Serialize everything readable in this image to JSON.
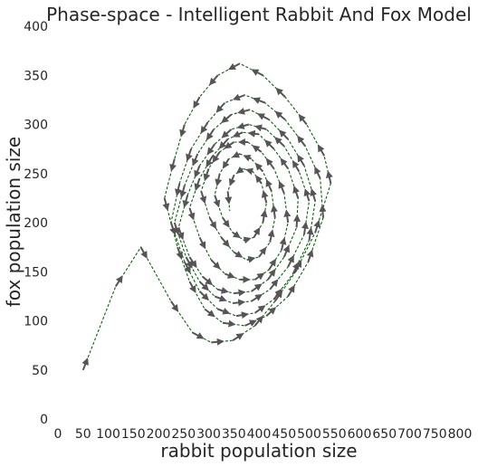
{
  "chart_data": {
    "type": "line",
    "title": "Phase-space - Intelligent Rabbit And Fox Model",
    "xlabel": "rabbit population size",
    "ylabel": "fox population size",
    "xlim": [
      0,
      800
    ],
    "ylim": [
      0,
      400
    ],
    "xticks": [
      "0",
      "50",
      "100",
      "150",
      "200",
      "250",
      "300",
      "350",
      "400",
      "450",
      "500",
      "550",
      "600",
      "650",
      "700",
      "750",
      "800"
    ],
    "yticks": [
      "0",
      "50",
      "100",
      "150",
      "200",
      "250",
      "300",
      "350",
      "400"
    ],
    "grid": false,
    "colors": {
      "trajectory": "#006400",
      "arrows": "#555555"
    },
    "series": [
      {
        "x": [
          50,
          115,
          165,
          225,
          268,
          305,
          348,
          392,
          432,
          473,
          512,
          543,
          530,
          495,
          452,
          408,
          362,
          318,
          282,
          252,
          232,
          212,
          238,
          262,
          292,
          328,
          372,
          415,
          458,
          498,
          528,
          522,
          492,
          452,
          412,
          372,
          332,
          298,
          265,
          242,
          225,
          252,
          282,
          318,
          355,
          392,
          430,
          468,
          500,
          512,
          490,
          458,
          420,
          382,
          345,
          310,
          278,
          252,
          232,
          255,
          282,
          312,
          348,
          385,
          422,
          458,
          490,
          500,
          480,
          450,
          415,
          380,
          345,
          312,
          282,
          258,
          240,
          262,
          288,
          318,
          350,
          385,
          418,
          450,
          475,
          478,
          458,
          430,
          400,
          368,
          338,
          308,
          282,
          262,
          282,
          305,
          332,
          362,
          392,
          420,
          445,
          458,
          450,
          430,
          405,
          378,
          350,
          322,
          300,
          285,
          302,
          325,
          350,
          376,
          400,
          422,
          432,
          425,
          408,
          385,
          362,
          340,
          322,
          312,
          328,
          348,
          370,
          390,
          408,
          415,
          405,
          388,
          368,
          350,
          338,
          342
        ],
        "y": [
          50,
          135,
          175,
          120,
          88,
          78,
          80,
          95,
          120,
          150,
          190,
          240,
          268,
          300,
          328,
          350,
          362,
          350,
          328,
          300,
          265,
          225,
          175,
          140,
          112,
          98,
          95,
          105,
          125,
          160,
          205,
          245,
          278,
          305,
          322,
          330,
          322,
          302,
          275,
          240,
          200,
          160,
          130,
          112,
          105,
          108,
          122,
          148,
          182,
          222,
          258,
          285,
          305,
          315,
          310,
          295,
          270,
          238,
          200,
          165,
          140,
          125,
          118,
          120,
          132,
          155,
          188,
          222,
          252,
          278,
          295,
          300,
          295,
          280,
          258,
          228,
          195,
          165,
          145,
          132,
          128,
          130,
          142,
          165,
          195,
          225,
          255,
          275,
          290,
          292,
          285,
          268,
          245,
          215,
          185,
          162,
          148,
          142,
          142,
          152,
          172,
          200,
          230,
          255,
          272,
          282,
          282,
          272,
          255,
          232,
          205,
          185,
          170,
          162,
          165,
          180,
          205,
          232,
          252,
          265,
          270,
          265,
          250,
          228,
          205,
          190,
          182,
          185,
          200,
          220,
          240,
          252,
          255,
          248,
          232,
          212
        ]
      }
    ]
  }
}
